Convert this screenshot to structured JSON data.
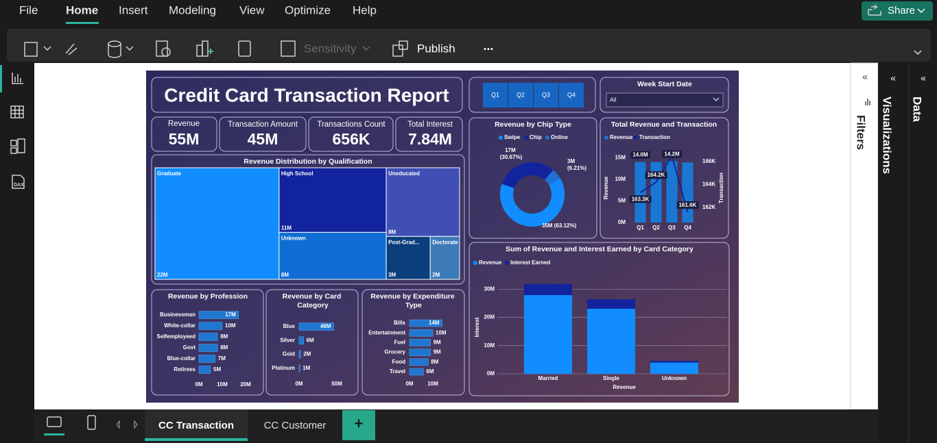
{
  "menu": [
    "File",
    "Home",
    "Insert",
    "Modeling",
    "View",
    "Optimize",
    "Help"
  ],
  "share": "Share",
  "toolbar": {
    "sensitivity": "Sensitivity",
    "publish": "Publish",
    "more": "..."
  },
  "sidebar": {
    "dax": "DAX"
  },
  "panes": {
    "filters": "Filters",
    "visualizations": "Visualizations",
    "data": "Data"
  },
  "tabs": [
    "CC Transaction",
    "CC Customer"
  ],
  "add_tab": "+",
  "report": {
    "title": "Credit Card Transaction Report",
    "kpis": [
      {
        "label": "Revenue",
        "value": "55M"
      },
      {
        "label": "Transaction Amount",
        "value": "45M"
      },
      {
        "label": "Transactions Count",
        "value": "656K"
      },
      {
        "label": "Total Interest",
        "value": "7.84M"
      }
    ],
    "quarter_slicer": [
      "Q1",
      "Q2",
      "Q3",
      "Q4"
    ],
    "week_slicer": {
      "title": "Week Start Date",
      "selected": "All"
    }
  },
  "chart_data": [
    {
      "type": "treemap",
      "title": "Revenue Distribution by Qualification",
      "categories": [
        "Graduate",
        "High School",
        "Uneducated",
        "Unknown",
        "Post-Grad...",
        "Doctorate"
      ],
      "values": [
        22,
        11,
        8,
        8,
        3,
        2
      ],
      "value_labels": [
        "22M",
        "11M",
        "8M",
        "8M",
        "3M",
        "2M"
      ],
      "colors": [
        "#118dff",
        "#12239e",
        "#3f4fb3",
        "#0f6dd3",
        "#0b3f7c",
        "#3d7ab8"
      ]
    },
    {
      "type": "donut",
      "title": "Revenue by Chip Type",
      "categories": [
        "Swipe",
        "Chip",
        "Online"
      ],
      "values": [
        35,
        17,
        3
      ],
      "value_labels": [
        "35M (63.12%)",
        "17M (30.67%)",
        "3M (6.21%)"
      ],
      "colors": [
        "#118dff",
        "#12239e",
        "#1f6fd6"
      ],
      "legend": "top"
    },
    {
      "type": "bar_line",
      "title": "Total Revenue and Transaction",
      "categories": [
        "Q1",
        "Q2",
        "Q3",
        "Q4"
      ],
      "series": [
        {
          "name": "Revenue",
          "color": "#1a78d4",
          "values": [
            14.0,
            14.0,
            14.2,
            13.9
          ],
          "value_labels": [
            "14.0M",
            null,
            "14.2M",
            null
          ]
        },
        {
          "name": "Transaction",
          "color": "#12239e",
          "axis": "y2",
          "values": [
            163300,
            164200,
            166500,
            161600
          ],
          "value_labels": [
            "163.3K",
            "164.2K",
            null,
            "161.6K"
          ]
        }
      ],
      "ylabel": "Revenue",
      "y2label": "Transaction",
      "ylim": [
        0,
        16
      ],
      "yticks": [
        {
          "value": 0,
          "label": "0M"
        },
        {
          "value": 5,
          "label": "5M"
        },
        {
          "value": 10,
          "label": "10M"
        },
        {
          "value": 15,
          "label": "15M"
        }
      ],
      "y2lim": [
        160700,
        166700
      ],
      "y2ticks": [
        {
          "value": 162000,
          "label": "162K"
        },
        {
          "value": 164000,
          "label": "164K"
        },
        {
          "value": 166000,
          "label": "166K"
        }
      ],
      "legend": "top-left"
    },
    {
      "type": "stacked_bar",
      "title": "Sum of Revenue and Interest Earned by Card Category",
      "categories": [
        "Married",
        "Single",
        "Unknown"
      ],
      "series": [
        {
          "name": "Revenue",
          "color": "#118dff",
          "values": [
            27.9,
            23.1,
            4.0
          ]
        },
        {
          "name": "Interest Earned",
          "color": "#12239e",
          "values": [
            3.9,
            3.3,
            0.6
          ]
        }
      ],
      "xlabel": "Revenue",
      "ylabel": "Interest",
      "ylim": [
        0,
        33
      ],
      "yticks": [
        {
          "value": 0,
          "label": "0M"
        },
        {
          "value": 10,
          "label": "10M"
        },
        {
          "value": 20,
          "label": "20M"
        },
        {
          "value": 30,
          "label": "30M"
        }
      ],
      "grid": true,
      "legend": "top-left"
    },
    {
      "type": "hbar",
      "title": "Revenue by Profession",
      "categories": [
        "Businessman",
        "White-collar",
        "Selfemployeed",
        "Govt",
        "Blue-collar",
        "Retirees"
      ],
      "values": [
        17,
        10,
        8,
        8,
        7,
        5
      ],
      "value_labels": [
        "17M",
        "10M",
        "8M",
        "8M",
        "7M",
        "5M"
      ],
      "color": "#1f77d0",
      "xlim": [
        0,
        20
      ],
      "xticks": [
        {
          "value": 0,
          "label": "0M"
        },
        {
          "value": 10,
          "label": "10M"
        },
        {
          "value": 20,
          "label": "20M"
        }
      ]
    },
    {
      "type": "hbar",
      "title": "Revenue by Card Category",
      "categories": [
        "Blue",
        "Silver",
        "Gold",
        "Platinum"
      ],
      "values": [
        46,
        6,
        2,
        1
      ],
      "value_labels": [
        "46M",
        "6M",
        "2M",
        "1M"
      ],
      "color": "#1f77d0",
      "xlim": [
        0,
        50
      ],
      "xticks": [
        {
          "value": 0,
          "label": "0M"
        },
        {
          "value": 50,
          "label": "50M"
        }
      ]
    },
    {
      "type": "hbar",
      "title": "Revenue by Expenditure Type",
      "categories": [
        "Bills",
        "Entertainment",
        "Fuel",
        "Grocery",
        "Food",
        "Travel"
      ],
      "values": [
        14,
        10,
        9,
        9,
        8,
        6
      ],
      "value_labels": [
        "14M",
        "10M",
        "9M",
        "9M",
        "8M",
        "6M"
      ],
      "color": "#1f77d0",
      "xlim": [
        0,
        15
      ],
      "xticks": [
        {
          "value": 0,
          "label": "0M"
        },
        {
          "value": 10,
          "label": "10M"
        }
      ]
    }
  ]
}
